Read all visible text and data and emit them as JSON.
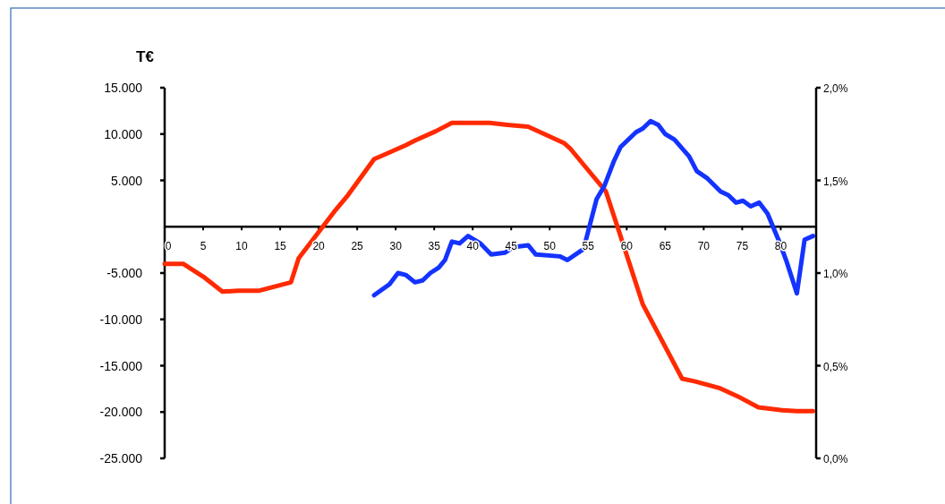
{
  "chart_data": {
    "type": "line",
    "ylabel": "T€",
    "xlim": [
      0,
      84.6
    ],
    "xticks": [
      0,
      5,
      10,
      15,
      20,
      25,
      30,
      35,
      40,
      45,
      50,
      55,
      60,
      65,
      70,
      75,
      80
    ],
    "ylim": [
      -25000,
      15000
    ],
    "yticks": [
      {
        "value": -25000,
        "label": "-25.000"
      },
      {
        "value": -20000,
        "label": "-20.000"
      },
      {
        "value": -15000,
        "label": "-15.000"
      },
      {
        "value": -10000,
        "label": "-10.000"
      },
      {
        "value": -5000,
        "label": "-5.000"
      },
      {
        "value": 5000,
        "label": "5.000"
      },
      {
        "value": 10000,
        "label": "10.000"
      },
      {
        "value": 15000,
        "label": "15.000"
      }
    ],
    "y2lim": [
      0,
      2
    ],
    "y2ticks": [
      {
        "value": 0,
        "label": "0,0%"
      },
      {
        "value": 0.5,
        "label": "0,5%"
      },
      {
        "value": 1,
        "label": "1,0%"
      },
      {
        "value": 1.5,
        "label": "1,5%"
      },
      {
        "value": 2,
        "label": "2,0%"
      }
    ],
    "grid": false,
    "marker": "none",
    "line_style": "solid",
    "series": [
      {
        "color": "#ff2a00",
        "x": [
          0,
          2.4,
          5.2,
          7.5,
          9.6,
          12.3,
          16.4,
          17.4,
          22,
          23.8,
          27.2,
          28.6,
          31.3,
          32.5,
          35.2,
          37.3,
          42.2,
          44.5,
          47.2,
          48.8,
          51.9,
          52.6,
          56.1,
          57.3,
          58.8,
          62.1,
          67.2,
          68.9,
          72,
          74.4,
          77.1,
          80.2,
          82.1,
          84.2
        ],
        "values": [
          -4000,
          -4000,
          -5500,
          -7000,
          -6900,
          -6900,
          -6000,
          -3400,
          1600,
          3400,
          7300,
          7800,
          8800,
          9300,
          10300,
          11200,
          11200,
          11000,
          10800,
          10200,
          9000,
          8500,
          5000,
          3800,
          0,
          -8400,
          -16400,
          -16700,
          -17400,
          -18300,
          -19500,
          -19800,
          -19900,
          -19900
        ]
      },
      {
        "color": "#1433ff",
        "axis": "y2",
        "x": [
          27.2,
          29.2,
          30.3,
          31.3,
          32.5,
          33.5,
          34.5,
          35.6,
          36.4,
          37.3,
          38.3,
          39.4,
          41,
          42.4,
          44.2,
          45.3,
          47.2,
          48.2,
          51.3,
          52.3,
          54.4,
          56.1,
          57.1,
          58.3,
          59.2,
          61.2,
          62.1,
          63.1,
          64.1,
          65,
          66.2,
          68.1,
          69.1,
          70.5,
          72.2,
          73.2,
          74.2,
          75.1,
          76.1,
          77.2,
          78.3,
          79.8,
          80.7,
          82.1,
          83.1,
          84.2
        ],
        "values": [
          0.88,
          0.94,
          1,
          0.99,
          0.95,
          0.96,
          1,
          1.03,
          1.07,
          1.17,
          1.16,
          1.2,
          1.16,
          1.1,
          1.11,
          1.14,
          1.15,
          1.1,
          1.09,
          1.07,
          1.13,
          1.4,
          1.47,
          1.6,
          1.68,
          1.76,
          1.78,
          1.82,
          1.8,
          1.75,
          1.72,
          1.63,
          1.55,
          1.51,
          1.44,
          1.42,
          1.38,
          1.39,
          1.36,
          1.38,
          1.32,
          1.17,
          1.07,
          0.89,
          1.18,
          1.2
        ]
      }
    ]
  }
}
